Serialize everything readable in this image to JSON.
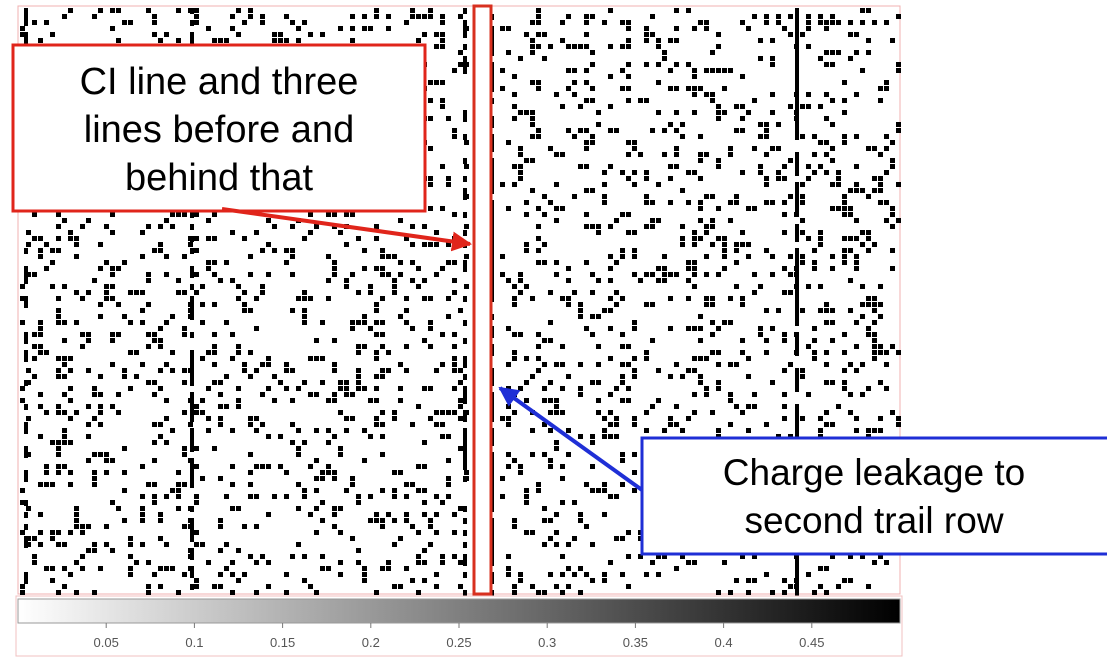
{
  "figure": {
    "callout_red": {
      "lines": [
        "CI line and three",
        "lines before and",
        "behind that"
      ],
      "color": "#e0251b"
    },
    "callout_blue": {
      "lines": [
        "Charge leakage to",
        "second trail row"
      ],
      "color": "#1f2fd6"
    },
    "highlight_color": "#d8301f",
    "pixel_color": "#000000",
    "colorbar": {
      "ticks": [
        "0.05",
        "0.1",
        "0.15",
        "0.2",
        "0.25",
        "0.3",
        "0.35",
        "0.4",
        "0.45"
      ],
      "range": [
        0,
        0.5
      ],
      "gradient": [
        "#ffffff",
        "#000000"
      ]
    }
  }
}
